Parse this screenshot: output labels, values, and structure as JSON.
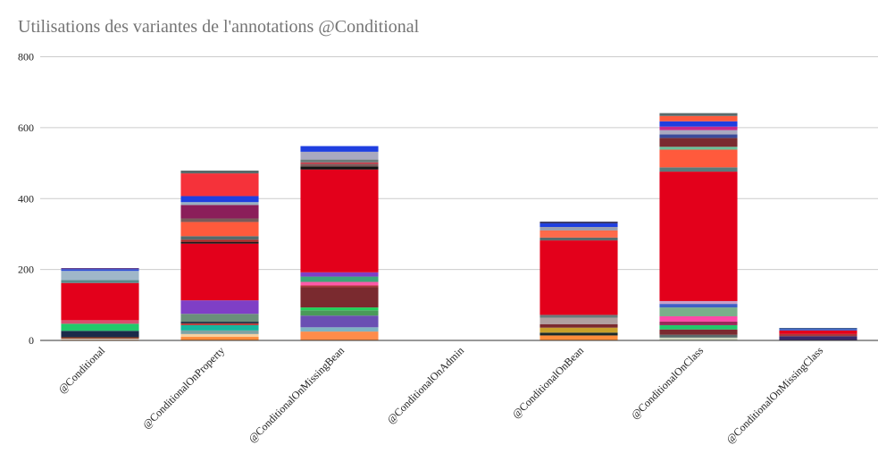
{
  "chart_data": {
    "type": "bar",
    "stacked": true,
    "title": "Utilisations des variantes de l'annotations @Conditional",
    "xlabel": "",
    "ylabel": "",
    "ylim": [
      0,
      800
    ],
    "yticks": [
      0,
      200,
      400,
      600,
      800
    ],
    "grid": true,
    "legend": "none",
    "categories": [
      "@Conditional",
      "@ConditionalOnProperty",
      "@ConditionalOnMissingBean",
      "@ConditionalOnAdmin",
      "@ConditionalOnBean",
      "@ConditionalOnClass",
      "@ConditionalOnMissingClass"
    ],
    "stacks": [
      [
        {
          "value": 3,
          "color": "#f7b98a"
        },
        {
          "value": 2,
          "color": "#d8d8d8"
        },
        {
          "value": 4,
          "color": "#8b3a1a"
        },
        {
          "value": 18,
          "color": "#1b2a4a"
        },
        {
          "value": 20,
          "color": "#22c96b"
        },
        {
          "value": 10,
          "color": "#d94c6e"
        },
        {
          "value": 105,
          "color": "#e3001b"
        },
        {
          "value": 8,
          "color": "#5a8a8a"
        },
        {
          "value": 26,
          "color": "#9fb7c9"
        },
        {
          "value": 5,
          "color": "#2f4fd6"
        },
        {
          "value": 3,
          "color": "#5b3a8a"
        }
      ],
      [
        {
          "value": 10,
          "color": "#ff8c3a"
        },
        {
          "value": 8,
          "color": "#f6d0a0"
        },
        {
          "value": 10,
          "color": "#7fa3a3"
        },
        {
          "value": 15,
          "color": "#16b6a0"
        },
        {
          "value": 5,
          "color": "#b53b3b"
        },
        {
          "value": 5,
          "color": "#2b3a4a"
        },
        {
          "value": 22,
          "color": "#6a8f7a"
        },
        {
          "value": 38,
          "color": "#7f3fc6"
        },
        {
          "value": 160,
          "color": "#e3001b"
        },
        {
          "value": 5,
          "color": "#1a1a1a"
        },
        {
          "value": 6,
          "color": "#b22222"
        },
        {
          "value": 10,
          "color": "#556b6b"
        },
        {
          "value": 40,
          "color": "#ff5a3c"
        },
        {
          "value": 10,
          "color": "#7a5a5a"
        },
        {
          "value": 38,
          "color": "#8b1e5a"
        },
        {
          "value": 8,
          "color": "#9ab0c0"
        },
        {
          "value": 17,
          "color": "#1f3fe0"
        },
        {
          "value": 64,
          "color": "#f5323a"
        },
        {
          "value": 8,
          "color": "#5a6a6a"
        }
      ],
      [
        {
          "value": 25,
          "color": "#ff8c4a"
        },
        {
          "value": 12,
          "color": "#7fb3c3"
        },
        {
          "value": 33,
          "color": "#6a4fb3"
        },
        {
          "value": 15,
          "color": "#4a9a5a"
        },
        {
          "value": 8,
          "color": "#22d05a"
        },
        {
          "value": 57,
          "color": "#7a2a2f"
        },
        {
          "value": 5,
          "color": "#a83a3a"
        },
        {
          "value": 10,
          "color": "#ff5aa8"
        },
        {
          "value": 15,
          "color": "#3ca87a"
        },
        {
          "value": 12,
          "color": "#7f3fc6"
        },
        {
          "value": 290,
          "color": "#e3001b"
        },
        {
          "value": 8,
          "color": "#111111"
        },
        {
          "value": 8,
          "color": "#7a5a5a"
        },
        {
          "value": 4,
          "color": "#cc3344"
        },
        {
          "value": 8,
          "color": "#6a7a7a"
        },
        {
          "value": 22,
          "color": "#a9a9c0"
        },
        {
          "value": 16,
          "color": "#1f3fe0"
        }
      ],
      [],
      [
        {
          "value": 14,
          "color": "#ff8c3a"
        },
        {
          "value": 8,
          "color": "#1b2a2a"
        },
        {
          "value": 14,
          "color": "#c8a02a"
        },
        {
          "value": 10,
          "color": "#7a2a2f"
        },
        {
          "value": 18,
          "color": "#b0a0a0"
        },
        {
          "value": 8,
          "color": "#6a7a7a"
        },
        {
          "value": 210,
          "color": "#e3001b"
        },
        {
          "value": 8,
          "color": "#5a6a6a"
        },
        {
          "value": 20,
          "color": "#ff6a4a"
        },
        {
          "value": 10,
          "color": "#9aa0b0"
        },
        {
          "value": 10,
          "color": "#1f3fe0"
        },
        {
          "value": 5,
          "color": "#3a3a6a"
        }
      ],
      [
        {
          "value": 8,
          "color": "#cfd8c0"
        },
        {
          "value": 8,
          "color": "#5a6a6a"
        },
        {
          "value": 15,
          "color": "#7a2a2f"
        },
        {
          "value": 12,
          "color": "#22c96b"
        },
        {
          "value": 10,
          "color": "#9a2a5a"
        },
        {
          "value": 15,
          "color": "#ff4aa8"
        },
        {
          "value": 25,
          "color": "#7ab08a"
        },
        {
          "value": 10,
          "color": "#3f5fc6"
        },
        {
          "value": 8,
          "color": "#c8a0c8"
        },
        {
          "value": 365,
          "color": "#e3001b"
        },
        {
          "value": 12,
          "color": "#5a7a7a"
        },
        {
          "value": 50,
          "color": "#ff5a3c"
        },
        {
          "value": 8,
          "color": "#6ac09a"
        },
        {
          "value": 25,
          "color": "#7a2a2f"
        },
        {
          "value": 10,
          "color": "#3a4a9a"
        },
        {
          "value": 12,
          "color": "#a9a9c0"
        },
        {
          "value": 10,
          "color": "#c82a8a"
        },
        {
          "value": 15,
          "color": "#1f3fe0"
        },
        {
          "value": 15,
          "color": "#ff5a3c"
        },
        {
          "value": 8,
          "color": "#5a6a6a"
        }
      ],
      [
        {
          "value": 12,
          "color": "#3a2a6a"
        },
        {
          "value": 6,
          "color": "#a83a3a"
        },
        {
          "value": 10,
          "color": "#e3001b"
        },
        {
          "value": 4,
          "color": "#3a5ac6"
        },
        {
          "value": 3,
          "color": "#2a4a8a"
        }
      ]
    ]
  }
}
